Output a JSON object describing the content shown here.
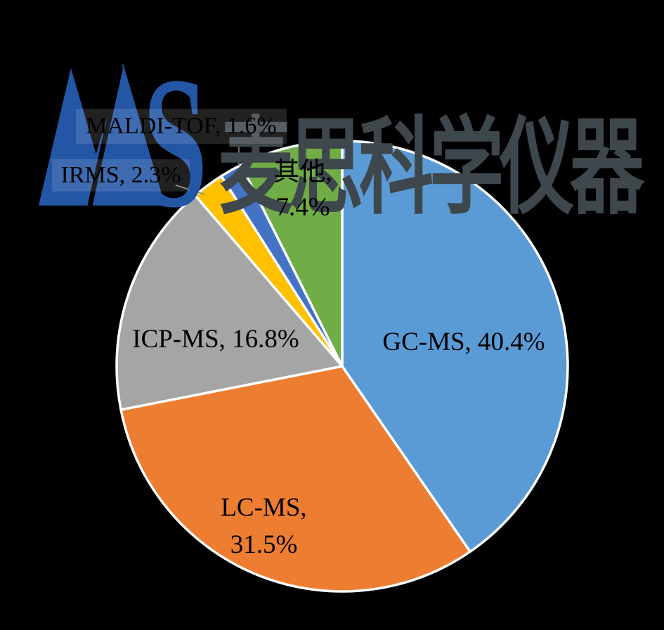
{
  "background_color": "#000000",
  "logo": {
    "monogram": "MS",
    "monogram_letter_s": "S",
    "monogram_color": "#2356A5",
    "company_name": "麦思科学仪器",
    "company_color": "#3E474C"
  },
  "chart_data": {
    "type": "pie",
    "title": "",
    "value_unit": "%",
    "direction": "clockwise",
    "start_angle_deg": 0,
    "slice_border_color": "#FFFFFF",
    "leader_line_color": "#8A8A8A",
    "label_color": "#000000",
    "slices": [
      {
        "label": "GC-MS",
        "value": 40.4,
        "color": "#5B9BD5",
        "label_lines": [
          "GC-MS, 40.4%"
        ]
      },
      {
        "label": "LC-MS",
        "value": 31.5,
        "color": "#ED7D31",
        "label_lines": [
          "LC-MS,",
          "31.5%"
        ]
      },
      {
        "label": "ICP-MS",
        "value": 16.8,
        "color": "#A5A5A5",
        "label_lines": [
          "ICP-MS, 16.8%"
        ]
      },
      {
        "label": "IRMS",
        "value": 2.3,
        "color": "#FFC000",
        "label_lines": [
          "IRMS, 2.3%"
        ]
      },
      {
        "label": "MALDI-TOF",
        "value": 1.6,
        "color": "#4472C4",
        "label_lines": [
          "MALDI-TOF, 1.6%"
        ]
      },
      {
        "label": "其他",
        "value": 7.4,
        "color": "#70AD47",
        "label_lines": [
          "其他,",
          "7.4%"
        ]
      }
    ]
  }
}
